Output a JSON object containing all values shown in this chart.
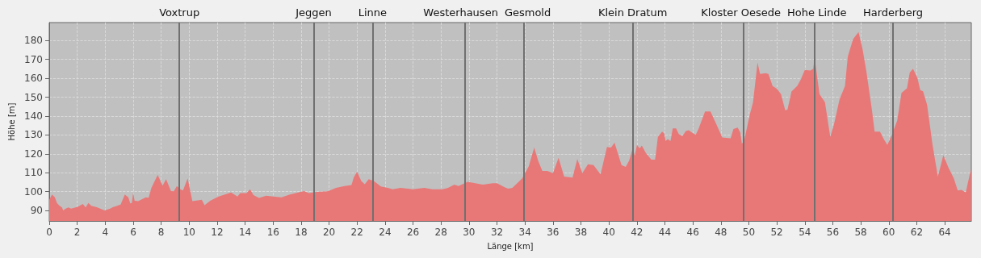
{
  "chart_data": {
    "type": "area",
    "xlabel": "Länge [km]",
    "ylabel": "Höhe [m]",
    "xlim": [
      0,
      65.9
    ],
    "ylim": [
      84.5,
      189.5
    ],
    "xticks": [
      0,
      2,
      4,
      6,
      8,
      10,
      12,
      14,
      16,
      18,
      20,
      22,
      24,
      26,
      28,
      30,
      32,
      34,
      36,
      38,
      40,
      42,
      44,
      46,
      48,
      50,
      52,
      54,
      56,
      58,
      60,
      62,
      64
    ],
    "yticks": [
      90,
      100,
      110,
      120,
      130,
      140,
      150,
      160,
      170,
      180
    ],
    "grid": true,
    "marker": "none",
    "x": [
      0,
      0.2,
      0.4,
      0.55,
      0.75,
      0.9,
      1.0,
      1.17,
      1.37,
      1.56,
      2.04,
      2.4,
      2.6,
      2.8,
      3.0,
      3.4,
      3.96,
      4.35,
      4.54,
      5.1,
      5.4,
      5.65,
      5.79,
      5.9,
      6.0,
      6.1,
      6.35,
      6.9,
      7.1,
      7.3,
      7.75,
      8.1,
      8.35,
      8.7,
      8.9,
      9.12,
      9.37,
      9.56,
      9.89,
      10.23,
      10.9,
      11.1,
      11.5,
      12.1,
      13.0,
      13.45,
      13.65,
      14.1,
      14.35,
      14.6,
      15.0,
      15.5,
      16.0,
      16.6,
      17.2,
      18.2,
      18.55,
      19.1,
      19.9,
      20.5,
      21.1,
      21.6,
      21.77,
      22.0,
      22.3,
      22.55,
      22.83,
      23.2,
      23.7,
      24.2,
      24.55,
      25.1,
      25.97,
      26.8,
      27.4,
      28.1,
      28.5,
      28.95,
      29.25,
      29.9,
      30.6,
      31.0,
      31.7,
      32.0,
      32.55,
      32.8,
      33.1,
      33.8,
      34.27,
      34.66,
      34.95,
      35.24,
      35.6,
      36.0,
      36.4,
      36.8,
      37.4,
      37.74,
      38.1,
      38.5,
      38.9,
      39.4,
      39.86,
      40.15,
      40.4,
      40.9,
      41.2,
      41.45,
      41.7,
      41.85,
      42.0,
      42.2,
      42.35,
      42.64,
      43.03,
      43.3,
      43.5,
      43.8,
      43.95,
      44.05,
      44.2,
      44.4,
      44.56,
      44.8,
      45.0,
      45.25,
      45.5,
      45.7,
      45.97,
      46.2,
      46.4,
      46.87,
      47.26,
      47.7,
      48.1,
      48.7,
      48.9,
      49.2,
      49.4,
      49.5,
      49.66,
      50.05,
      50.3,
      50.62,
      50.8,
      51.2,
      51.4,
      51.7,
      52.0,
      52.3,
      52.6,
      52.76,
      53.05,
      53.45,
      53.7,
      54.0,
      54.4,
      54.6,
      54.7,
      55.05,
      55.44,
      55.82,
      56.1,
      56.48,
      56.87,
      57.07,
      57.45,
      57.84,
      58.12,
      58.4,
      58.8,
      58.99,
      59.37,
      59.66,
      59.9,
      60.2,
      60.6,
      60.91,
      61.3,
      61.5,
      61.73,
      62.05,
      62.25,
      62.45,
      62.74,
      63.13,
      63.51,
      63.9,
      64.27,
      64.65,
      64.93,
      65.2,
      65.5,
      65.88
    ],
    "series": [
      {
        "color": "#e87878",
        "values": [
          95.7,
          98.5,
          97,
          94,
          92.4,
          91.8,
          90,
          91,
          91.7,
          91,
          92,
          93.5,
          91.7,
          94,
          92.5,
          91.8,
          90,
          91,
          91.8,
          93.1,
          98.5,
          97,
          93.8,
          94,
          99.5,
          95.2,
          95,
          97,
          96.8,
          102,
          108.8,
          103.2,
          106.6,
          100.3,
          100.2,
          103,
          101.3,
          100.6,
          107,
          95,
          95.7,
          92.8,
          95.2,
          97.4,
          99.5,
          97.4,
          99.2,
          99.2,
          101.3,
          98.2,
          96.7,
          97.8,
          97.4,
          97,
          98.5,
          100.3,
          99.2,
          99.9,
          100.2,
          102,
          103,
          103.5,
          107.7,
          110.5,
          105.6,
          103.9,
          106.6,
          105.6,
          102.8,
          102,
          101.3,
          102,
          101.3,
          102,
          101.3,
          101.3,
          102,
          103.7,
          103,
          105.2,
          104.2,
          103.7,
          104.5,
          104.5,
          102.3,
          101.6,
          102,
          107,
          113.4,
          123.3,
          116.2,
          111,
          111,
          109.8,
          117.9,
          108,
          107.4,
          117.3,
          109.8,
          114.5,
          114.1,
          109.1,
          123.7,
          123.3,
          125.9,
          114.1,
          113.1,
          116.5,
          123,
          119,
          124.7,
          122.9,
          124.4,
          120.5,
          116.9,
          116.9,
          129,
          131.8,
          130.8,
          126.8,
          127.8,
          126.8,
          133.5,
          133.5,
          130.4,
          129.4,
          132.1,
          132.5,
          131.1,
          130.1,
          133.2,
          142.4,
          142.4,
          135.3,
          128.7,
          128.3,
          133.2,
          133.9,
          131.1,
          125.4,
          126.8,
          140.3,
          147.4,
          168.4,
          162.3,
          162.7,
          162.3,
          155.9,
          154.5,
          151.6,
          143.1,
          143.4,
          153,
          155.9,
          159.2,
          164.4,
          164.1,
          165.1,
          171,
          151.6,
          147.4,
          129,
          136,
          148.8,
          155.9,
          171.5,
          180.7,
          184.5,
          175.7,
          163.7,
          143.1,
          131.8,
          131.8,
          127.6,
          124.7,
          129.7,
          137.5,
          152.3,
          154.7,
          163,
          165.1,
          160.2,
          153.8,
          153.1,
          146,
          124.7,
          108,
          119.3,
          112.7,
          107,
          100.6,
          100.9,
          99.5,
          112
        ]
      }
    ],
    "ref_lines": [
      {
        "axis": "x",
        "value": 9.3,
        "label": "Voxtrup",
        "color": "#707070"
      },
      {
        "axis": "x",
        "value": 18.9,
        "label": "Jeggen",
        "color": "#707070"
      },
      {
        "axis": "x",
        "value": 23.1,
        "label": "Linne",
        "color": "#707070"
      },
      {
        "axis": "x",
        "value": 29.7,
        "label": "Westerhausen",
        "color": "#707070"
      },
      {
        "axis": "x",
        "value": 33.9,
        "label": "Gesmold",
        "color": "#707070"
      },
      {
        "axis": "x",
        "value": 41.7,
        "label": "Klein Dratum",
        "color": "#707070"
      },
      {
        "axis": "x",
        "value": 49.6,
        "label": "Kloster Oesede",
        "color": "#707070"
      },
      {
        "axis": "x",
        "value": 54.7,
        "label": "Hohe Linde",
        "color": "#707070"
      },
      {
        "axis": "x",
        "value": 60.3,
        "label": "Harderberg",
        "color": "#707070"
      }
    ]
  }
}
